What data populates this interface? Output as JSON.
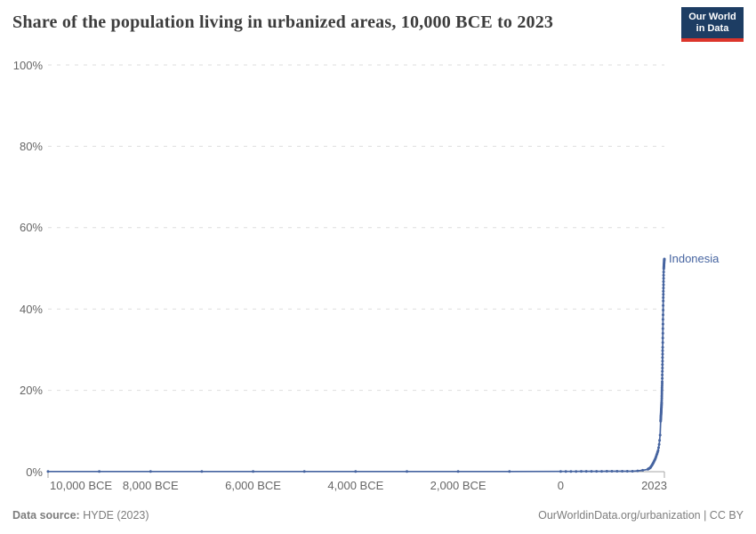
{
  "header": {
    "title": "Share of the population living in urbanized areas, 10,000 BCE to 2023",
    "logo": {
      "line1": "Our World",
      "line2": "in Data",
      "bg_color": "#1d3d63",
      "accent_color": "#dc352b"
    }
  },
  "chart_data": {
    "type": "line",
    "title": "Share of the population living in urbanized areas, 10,000 BCE to 2023",
    "unit": "%",
    "grid": true,
    "legend_position": "end-of-line-label",
    "x_axis": {
      "min": -10000,
      "max": 2023,
      "ticks": [
        {
          "year": -10000,
          "label": "10,000 BCE"
        },
        {
          "year": -8000,
          "label": "8,000 BCE"
        },
        {
          "year": -6000,
          "label": "6,000 BCE"
        },
        {
          "year": -4000,
          "label": "4,000 BCE"
        },
        {
          "year": -2000,
          "label": "2,000 BCE"
        },
        {
          "year": 0,
          "label": "0"
        },
        {
          "year": 2023,
          "label": "2023"
        }
      ]
    },
    "y_axis": {
      "min": 0,
      "max": 100,
      "ticks": [
        {
          "value": 0,
          "label": "0%"
        },
        {
          "value": 20,
          "label": "20%"
        },
        {
          "value": 40,
          "label": "40%"
        },
        {
          "value": 60,
          "label": "60%"
        },
        {
          "value": 80,
          "label": "80%"
        },
        {
          "value": 100,
          "label": "100%"
        }
      ]
    },
    "series": [
      {
        "name": "Indonesia",
        "color": "#4664a0",
        "points": [
          [
            -10000,
            0.05
          ],
          [
            -9000,
            0.05
          ],
          [
            -8000,
            0.05
          ],
          [
            -7000,
            0.05
          ],
          [
            -6000,
            0.05
          ],
          [
            -5000,
            0.05
          ],
          [
            -4000,
            0.05
          ],
          [
            -3000,
            0.05
          ],
          [
            -2000,
            0.05
          ],
          [
            -1000,
            0.05
          ],
          [
            0,
            0.06
          ],
          [
            1400,
            0.12
          ],
          [
            1500,
            0.2
          ],
          [
            1600,
            0.35
          ],
          [
            1700,
            0.6
          ],
          [
            1750,
            1.0
          ],
          [
            1800,
            2.0
          ],
          [
            1850,
            3.3
          ],
          [
            1900,
            5.2
          ],
          [
            1910,
            5.9
          ],
          [
            1920,
            6.7
          ],
          [
            1930,
            7.7
          ],
          [
            1940,
            9.0
          ],
          [
            1950,
            12.4
          ],
          [
            1960,
            14.6
          ],
          [
            1970,
            17.1
          ],
          [
            1980,
            22.1
          ],
          [
            1990,
            30.6
          ],
          [
            2000,
            42.0
          ],
          [
            2010,
            49.9
          ],
          [
            2020,
            52.0
          ],
          [
            2023,
            52.3
          ]
        ]
      }
    ],
    "colors": {
      "gridline": "#dedede",
      "axis": "#a7a7a7",
      "tick_text": "#666666"
    }
  },
  "footer": {
    "source_label": "Data source:",
    "source_value": " HYDE (2023)",
    "right_text": "OurWorldinData.org/urbanization | CC BY"
  }
}
